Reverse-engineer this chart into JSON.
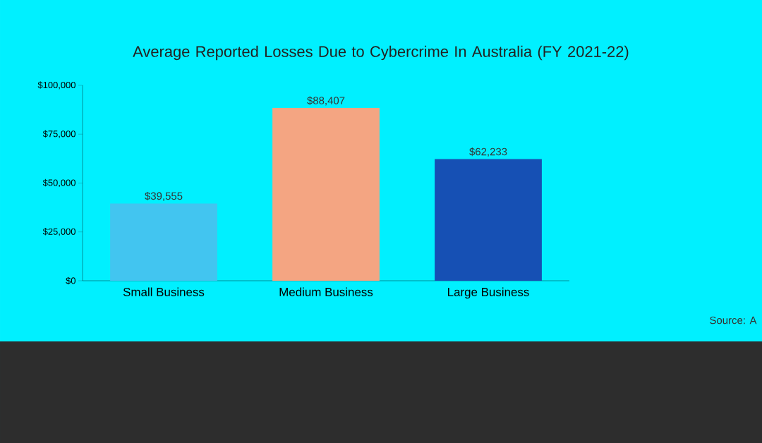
{
  "chart_data": {
    "type": "bar",
    "title": "Average Reported Losses Due to Cybercrime In Australia (FY 2021-22)",
    "categories": [
      "Small Business",
      "Medium Business",
      "Large Business"
    ],
    "values": [
      39555,
      88407,
      62233
    ],
    "colors": [
      "#42c5f0",
      "#f4a582",
      "#1650b4"
    ],
    "value_labels": [
      "$39,555",
      "$88,407",
      "$62,233"
    ],
    "ylim": [
      0,
      100000
    ],
    "yticks": [
      {
        "value": 0,
        "label": "$0"
      },
      {
        "value": 25000,
        "label": "$25,000"
      },
      {
        "value": 50000,
        "label": "$50,000"
      },
      {
        "value": 75000,
        "label": "$75,000"
      },
      {
        "value": 100000,
        "label": "$100,000"
      }
    ],
    "grid": false,
    "annotations": [
      "Source: A"
    ]
  }
}
